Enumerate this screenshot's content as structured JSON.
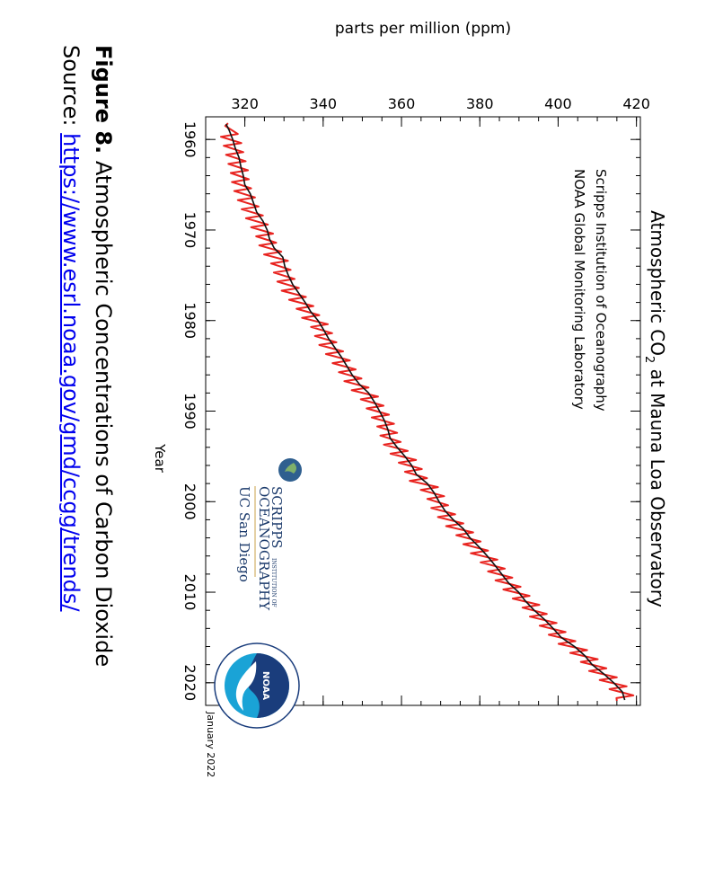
{
  "figure": {
    "label": "Figure 8.",
    "caption": "Atmospheric Concentrations of Carbon Dioxide",
    "source_label": "Source:",
    "source_link": "https://www.esrl.noaa.gov/gmd/ccgg/trends/"
  },
  "logos": {
    "scripps_line1": "SCRIPPS",
    "scripps_small": "INSTITUTION OF",
    "scripps_line2": "OCEANOGRAPHY",
    "ucsd": "UC San Diego",
    "noaa": "NOAA"
  },
  "colors": {
    "monthly": "#e8231f",
    "trend": "#111111",
    "link": "#0000ee"
  },
  "chart_data": {
    "type": "line",
    "title_pre": "Atmospheric CO",
    "title_sub": "2",
    "title_post": " at Mauna Loa Observatory",
    "subtitle_lines": [
      "Scripps Institution of Oceanography",
      "NOAA Global Monitoring Laboratory"
    ],
    "xlabel": "Year",
    "ylabel": "parts per million (ppm)",
    "date_note": "January 2022",
    "xlim": [
      1957.5,
      2022.5
    ],
    "ylim": [
      310,
      421
    ],
    "x_ticks": [
      1960,
      1970,
      1980,
      1990,
      2000,
      2010,
      2020
    ],
    "y_ticks": [
      320,
      340,
      360,
      380,
      400,
      420
    ],
    "series": [
      {
        "color": "#e8231f",
        "x": [
          1958.2,
          1958.5,
          1959.4,
          1959.7,
          1960.4,
          1960.7,
          1961.4,
          1961.7,
          1962.4,
          1962.7,
          1963.4,
          1963.7,
          1964.4,
          1964.7,
          1965.4,
          1965.7,
          1966.4,
          1966.7,
          1967.4,
          1967.7,
          1968.4,
          1968.7,
          1969.4,
          1969.7,
          1970.4,
          1970.7,
          1971.4,
          1971.7,
          1972.4,
          1972.7,
          1973.4,
          1973.7,
          1974.4,
          1974.7,
          1975.4,
          1975.7,
          1976.4,
          1976.7,
          1977.4,
          1977.7,
          1978.4,
          1978.7,
          1979.4,
          1979.7,
          1980.4,
          1980.7,
          1981.4,
          1981.7,
          1982.4,
          1982.7,
          1983.4,
          1983.7,
          1984.4,
          1984.7,
          1985.4,
          1985.7,
          1986.4,
          1986.7,
          1987.4,
          1987.7,
          1988.4,
          1988.7,
          1989.4,
          1989.7,
          1990.4,
          1990.7,
          1991.4,
          1991.7,
          1992.4,
          1992.7,
          1993.4,
          1993.7,
          1994.4,
          1994.7,
          1995.4,
          1995.7,
          1996.4,
          1996.7,
          1997.4,
          1997.7,
          1998.4,
          1998.7,
          1999.4,
          1999.7,
          2000.4,
          2000.7,
          2001.4,
          2001.7,
          2002.4,
          2002.7,
          2003.4,
          2003.7,
          2004.4,
          2004.7,
          2005.4,
          2005.7,
          2006.4,
          2006.7,
          2007.4,
          2007.7,
          2008.4,
          2008.7,
          2009.4,
          2009.7,
          2010.4,
          2010.7,
          2011.4,
          2011.7,
          2012.4,
          2012.7,
          2013.4,
          2013.7,
          2014.4,
          2014.7,
          2015.4,
          2015.7,
          2016.4,
          2016.7,
          2017.4,
          2017.7,
          2018.4,
          2018.7,
          2019.4,
          2019.7,
          2020.4,
          2020.7,
          2021.4,
          2021.7,
          2022.0
        ],
        "y": [
          315.7,
          315.0,
          318.2,
          313.9,
          319.1,
          314.6,
          319.6,
          315.2,
          320.2,
          315.8,
          320.8,
          316.4,
          321.0,
          316.7,
          321.6,
          317.3,
          322.6,
          318.2,
          323.5,
          319.2,
          324.6,
          320.3,
          325.9,
          321.6,
          327.2,
          322.9,
          328.0,
          323.7,
          329.3,
          324.9,
          331.0,
          326.7,
          331.7,
          327.4,
          332.7,
          328.3,
          333.8,
          329.4,
          335.6,
          331.3,
          337.5,
          333.2,
          339.0,
          334.6,
          341.2,
          336.9,
          342.3,
          337.9,
          343.4,
          339.0,
          345.1,
          340.7,
          346.8,
          342.4,
          348.3,
          344.0,
          349.8,
          345.4,
          351.6,
          347.3,
          354.0,
          349.6,
          355.4,
          351.1,
          356.8,
          352.4,
          358.1,
          353.8,
          358.9,
          354.6,
          359.8,
          355.5,
          361.6,
          357.2,
          363.7,
          359.3,
          365.2,
          360.9,
          366.5,
          362.1,
          369.3,
          364.9,
          370.9,
          366.6,
          371.9,
          367.6,
          373.7,
          369.3,
          375.8,
          371.4,
          378.3,
          374.0,
          380.2,
          375.8,
          382.1,
          377.7,
          384.5,
          380.2,
          386.4,
          382.1,
          388.3,
          384.0,
          390.4,
          386.0,
          392.7,
          388.4,
          395.2,
          390.9,
          397.1,
          392.8,
          399.6,
          395.3,
          401.9,
          397.6,
          404.4,
          400.1,
          407.4,
          403.1,
          410.1,
          405.8,
          412.3,
          407.9,
          415.0,
          410.6,
          417.5,
          413.1,
          419.2,
          414.9,
          415.0
        ]
      },
      {
        "color": "#111111",
        "x": [
          1958.3,
          1959,
          1960,
          1961,
          1962,
          1963,
          1964,
          1965,
          1966,
          1967,
          1968,
          1969,
          1970,
          1971,
          1972,
          1973,
          1974,
          1975,
          1976,
          1977,
          1978,
          1979,
          1980,
          1981,
          1982,
          1983,
          1984,
          1985,
          1986,
          1987,
          1988,
          1989,
          1990,
          1991,
          1992,
          1993,
          1994,
          1995,
          1996,
          1997,
          1998,
          1999,
          2000,
          2001,
          2002,
          2003,
          2004,
          2005,
          2006,
          2007,
          2008,
          2009,
          2010,
          2011,
          2012,
          2013,
          2014,
          2015,
          2016,
          2017,
          2018,
          2019,
          2020,
          2021,
          2021.9
        ],
        "y": [
          315.2,
          316.0,
          316.9,
          317.6,
          318.5,
          319.0,
          319.6,
          320.0,
          321.4,
          322.2,
          323.0,
          324.6,
          325.7,
          326.3,
          327.5,
          329.7,
          330.2,
          331.1,
          332.2,
          333.8,
          335.4,
          336.8,
          338.7,
          340.1,
          341.4,
          343.0,
          344.6,
          346.0,
          347.4,
          349.2,
          351.6,
          353.1,
          354.4,
          355.6,
          356.5,
          357.1,
          358.9,
          360.9,
          362.6,
          363.8,
          366.6,
          368.3,
          369.6,
          371.1,
          373.2,
          375.8,
          377.5,
          379.8,
          381.9,
          383.8,
          385.6,
          387.4,
          389.9,
          391.7,
          393.9,
          396.5,
          398.7,
          400.8,
          404.2,
          406.8,
          408.7,
          411.6,
          414.2,
          416.4,
          417.0
        ]
      }
    ]
  }
}
